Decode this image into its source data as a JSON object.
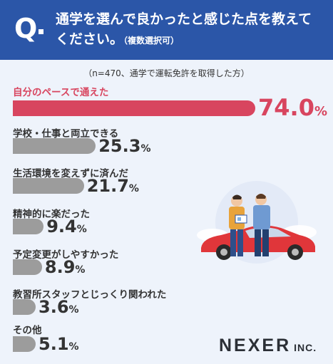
{
  "header": {
    "q_mark": "Q",
    "line1": "通学を選んで良かったと感じた点を教えて",
    "line2": "ください。",
    "line2_sub": "（複数選択可）"
  },
  "note": "（n=470、通学で運転免許を取得した方）",
  "logo": {
    "main": "NEXER",
    "suffix": "INC."
  },
  "colors": {
    "header": "#2b56a8",
    "highlight": "#d8455f",
    "bar": "#9c9c9c",
    "background": "#eef3fb"
  },
  "chart_data": {
    "type": "bar",
    "orientation": "horizontal",
    "unit": "%",
    "categories": [
      "自分のペースで通えた",
      "学校・仕事と両立できる",
      "生活環境を変えずに済んだ",
      "精神的に楽だった",
      "予定変更がしやすかった",
      "教習所スタッフとじっくり関われた",
      "その他"
    ],
    "values": [
      74.0,
      25.3,
      21.7,
      9.4,
      8.9,
      3.6,
      5.1
    ],
    "value_labels": [
      "74.0",
      "25.3",
      "21.7",
      "9.4",
      "8.9",
      "3.6",
      "5.1"
    ],
    "highlight_index": 0,
    "xlim": [
      0,
      100
    ],
    "grid": false
  }
}
